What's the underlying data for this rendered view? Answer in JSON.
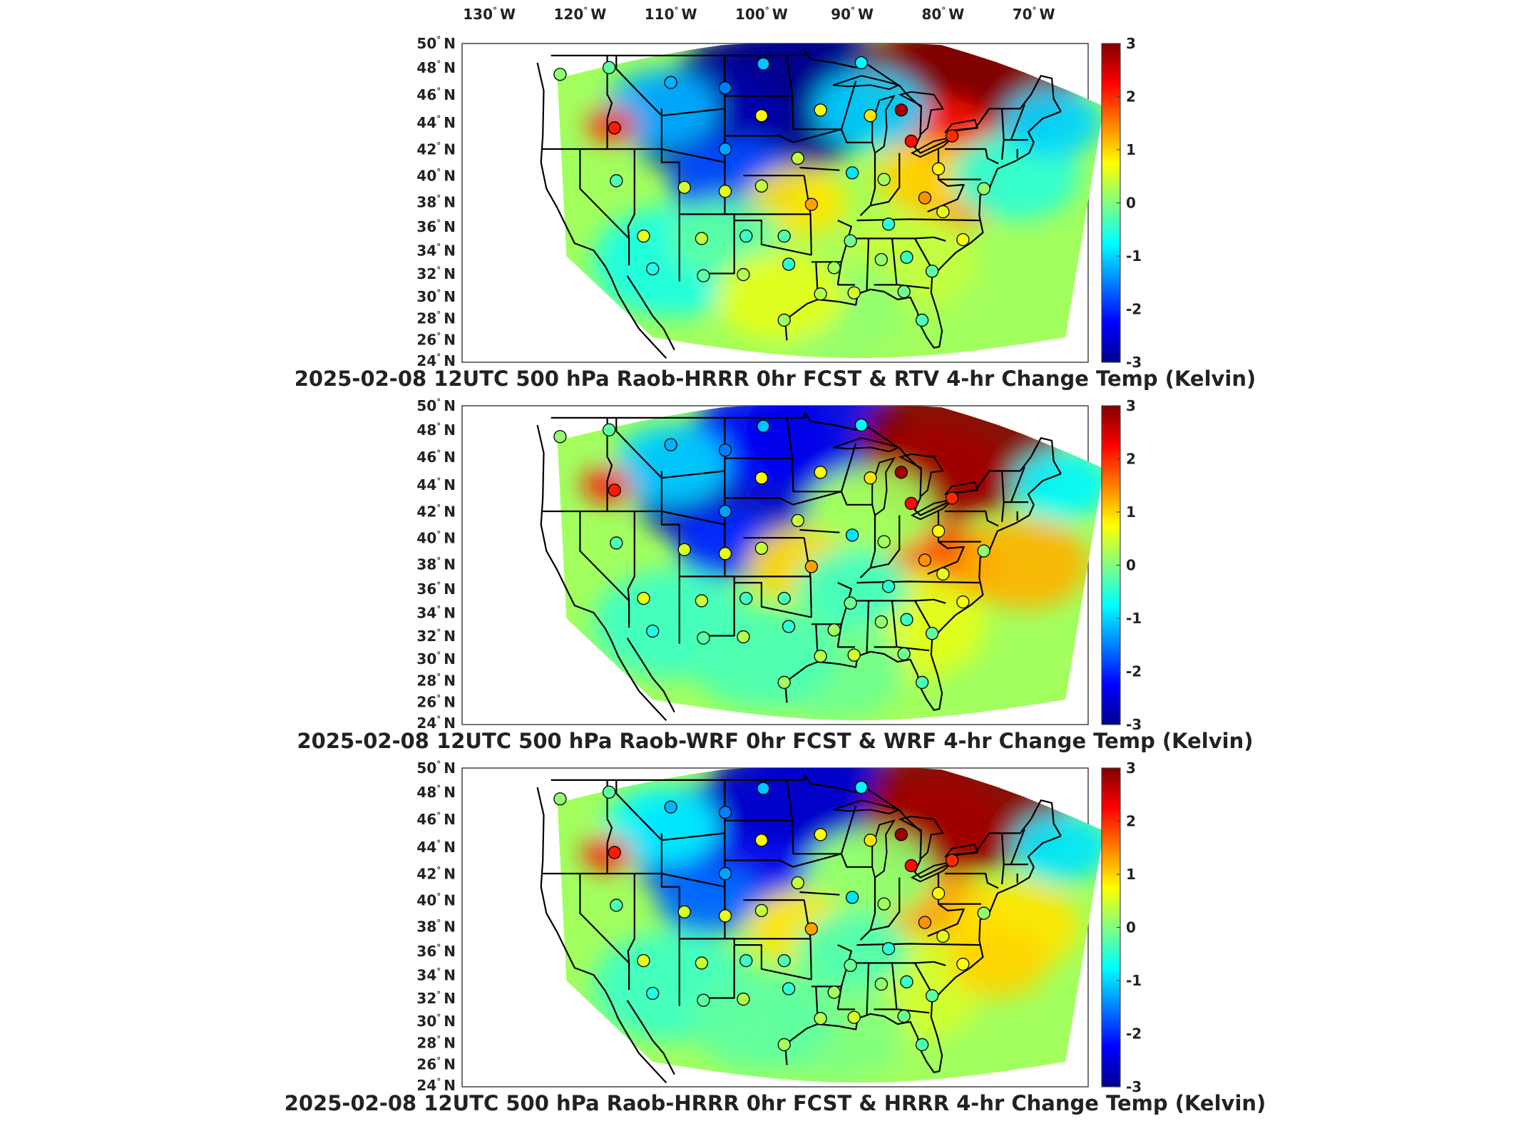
{
  "lon_labels": [
    "130",
    "120",
    "110",
    "100",
    "90",
    "80",
    "70"
  ],
  "lon_suffix": "W",
  "lat_labels": [
    "50",
    "48",
    "46",
    "44",
    "42",
    "40",
    "38",
    "36",
    "34",
    "32",
    "30",
    "28",
    "26",
    "24"
  ],
  "lat_suffix": "N",
  "degree_symbol": "°",
  "colorbar": {
    "ticks": [
      "3",
      "2",
      "1",
      "0",
      "-1",
      "-2",
      "-3"
    ],
    "min": -3,
    "max": 3,
    "colormap": [
      "#00008f",
      "#0000ff",
      "#0080ff",
      "#00ffff",
      "#80ff80",
      "#ffff00",
      "#ff8000",
      "#ff0000",
      "#800000"
    ]
  },
  "panels": [
    {
      "title": "2025-02-08 12UTC 500 hPa Raob-HRRR 0hr FCST & RTV 4-hr Change Temp (Kelvin)",
      "variant": "rtv"
    },
    {
      "title": "2025-02-08 12UTC 500 hPa Raob-WRF 0hr FCST & WRF 4-hr Change Temp (Kelvin)",
      "variant": "wrf"
    },
    {
      "title": "2025-02-08 12UTC 500 hPa Raob-HRRR 0hr FCST & HRRR 4-hr Change Temp (Kelvin)",
      "variant": "hrrr"
    }
  ],
  "raob_stations": [
    {
      "lon": -122.2,
      "lat": 47.5,
      "v": 0.1
    },
    {
      "lon": -116.8,
      "lat": 48.0,
      "v": -0.2
    },
    {
      "lon": -110.0,
      "lat": 46.9,
      "v": -1.2
    },
    {
      "lon": -104.0,
      "lat": 46.5,
      "v": -1.5
    },
    {
      "lon": -99.8,
      "lat": 48.3,
      "v": -1.1
    },
    {
      "lon": -100.0,
      "lat": 44.5,
      "v": 0.8
    },
    {
      "lon": -104.0,
      "lat": 42.0,
      "v": -1.3
    },
    {
      "lon": -116.2,
      "lat": 43.6,
      "v": 2.1
    },
    {
      "lon": -93.5,
      "lat": 44.9,
      "v": 0.7
    },
    {
      "lon": -89.0,
      "lat": 48.4,
      "v": -0.8
    },
    {
      "lon": -88.0,
      "lat": 44.5,
      "v": 0.9
    },
    {
      "lon": -84.6,
      "lat": 44.9,
      "v": 2.8
    },
    {
      "lon": -83.5,
      "lat": 42.6,
      "v": 2.2
    },
    {
      "lon": -79.0,
      "lat": 43.0,
      "v": 2.0
    },
    {
      "lon": -96.0,
      "lat": 41.3,
      "v": 0.4
    },
    {
      "lon": -90.0,
      "lat": 40.2,
      "v": -0.9
    },
    {
      "lon": -116.0,
      "lat": 39.6,
      "v": -0.3
    },
    {
      "lon": -108.5,
      "lat": 39.1,
      "v": 0.5
    },
    {
      "lon": -104.0,
      "lat": 38.8,
      "v": 0.6
    },
    {
      "lon": -100.0,
      "lat": 39.2,
      "v": 0.4
    },
    {
      "lon": -94.5,
      "lat": 37.8,
      "v": 1.3
    },
    {
      "lon": -86.5,
      "lat": 39.7,
      "v": 0.2
    },
    {
      "lon": -80.5,
      "lat": 40.5,
      "v": 0.8
    },
    {
      "lon": -82.0,
      "lat": 38.3,
      "v": 1.4
    },
    {
      "lon": -75.5,
      "lat": 39.0,
      "v": 0.1
    },
    {
      "lon": -80.0,
      "lat": 37.2,
      "v": 0.6
    },
    {
      "lon": -86.0,
      "lat": 36.2,
      "v": -0.5
    },
    {
      "lon": -77.8,
      "lat": 34.9,
      "v": 0.7
    },
    {
      "lon": -90.2,
      "lat": 34.8,
      "v": -0.1
    },
    {
      "lon": -97.5,
      "lat": 35.2,
      "v": -0.3
    },
    {
      "lon": -101.7,
      "lat": 35.2,
      "v": -0.4
    },
    {
      "lon": -106.6,
      "lat": 35.0,
      "v": 0.4
    },
    {
      "lon": -113.0,
      "lat": 35.2,
      "v": 0.6
    },
    {
      "lon": -97.0,
      "lat": 32.8,
      "v": -0.5
    },
    {
      "lon": -102.0,
      "lat": 31.9,
      "v": 0.3
    },
    {
      "lon": -106.4,
      "lat": 31.8,
      "v": -0.2
    },
    {
      "lon": -112.0,
      "lat": 32.4,
      "v": -0.6
    },
    {
      "lon": -92.0,
      "lat": 32.5,
      "v": 0.2
    },
    {
      "lon": -86.8,
      "lat": 33.2,
      "v": 0.1
    },
    {
      "lon": -84.0,
      "lat": 33.4,
      "v": -0.4
    },
    {
      "lon": -81.2,
      "lat": 32.2,
      "v": -0.2
    },
    {
      "lon": -93.5,
      "lat": 30.2,
      "v": 0.3
    },
    {
      "lon": -89.8,
      "lat": 30.3,
      "v": 0.5
    },
    {
      "lon": -84.3,
      "lat": 30.4,
      "v": -0.1
    },
    {
      "lon": -97.5,
      "lat": 27.8,
      "v": 0.2
    },
    {
      "lon": -82.3,
      "lat": 27.8,
      "v": -0.3
    }
  ]
}
